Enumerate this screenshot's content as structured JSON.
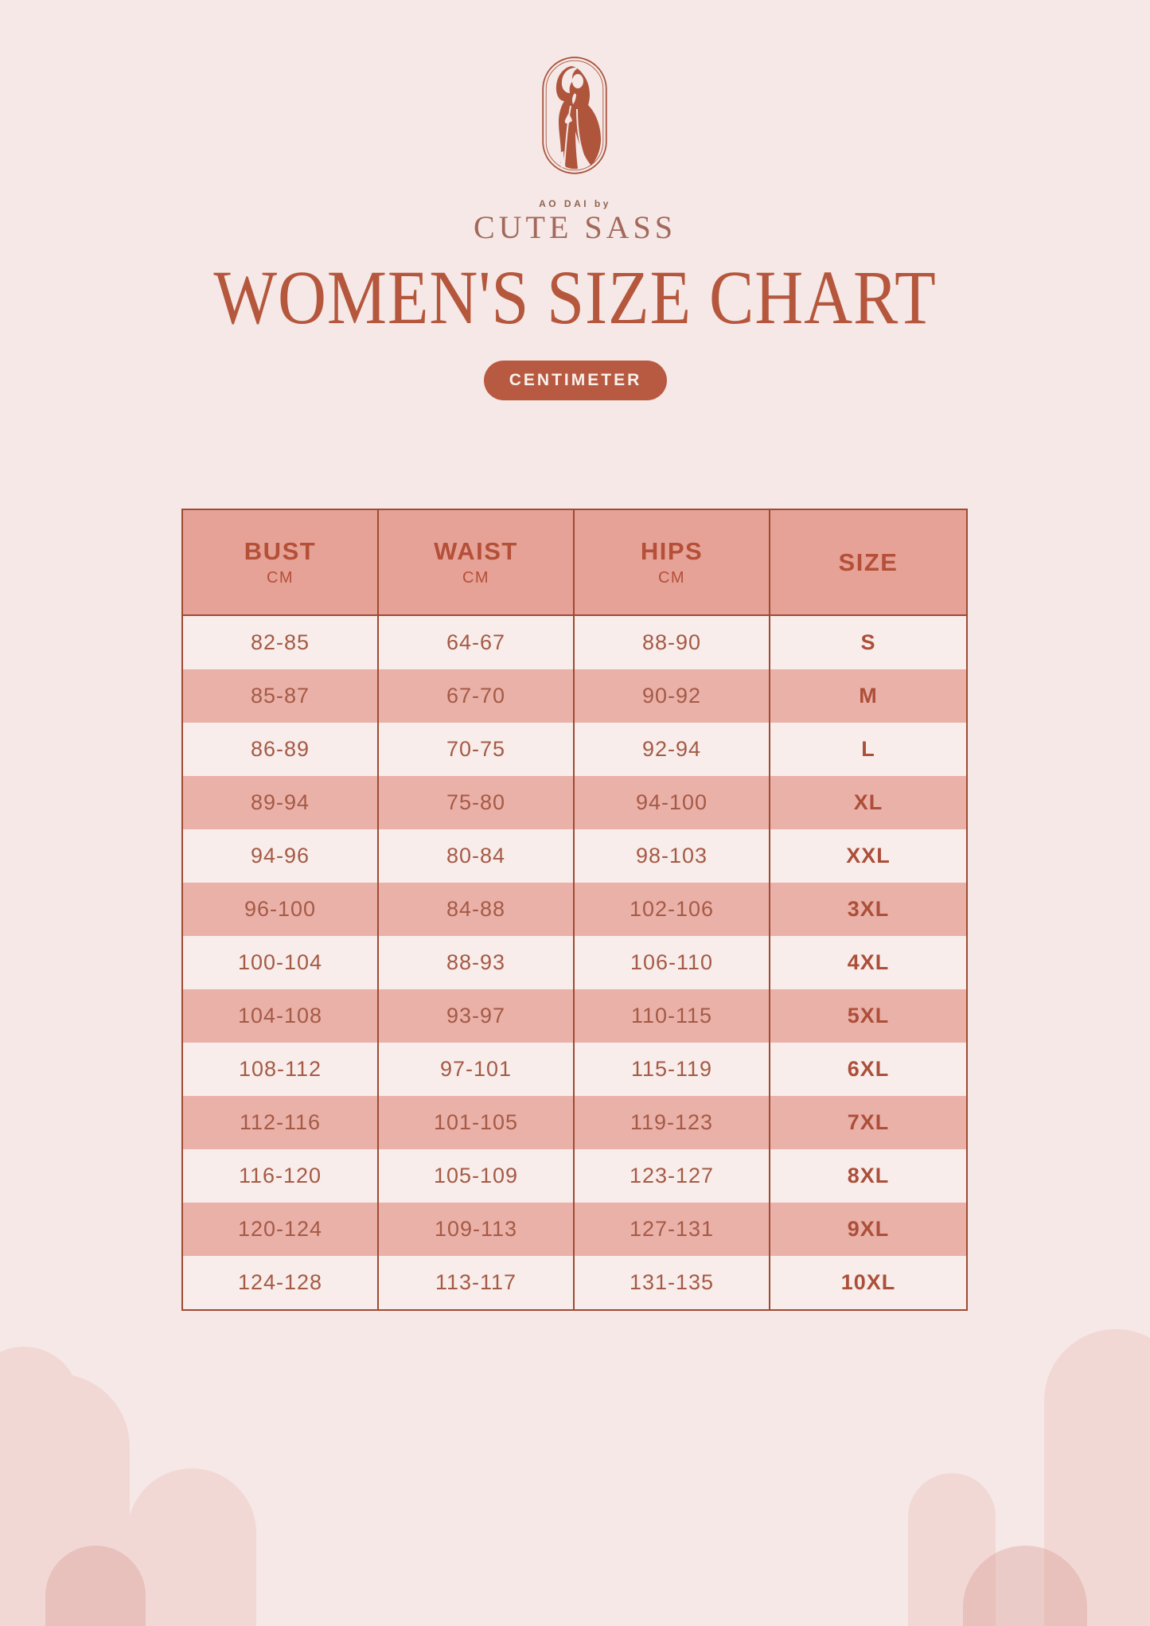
{
  "brand": {
    "figure_icon": "woman-ao-dai-icon",
    "logo_caption": "AO DAI by",
    "logo_name": "CUTE SASS"
  },
  "title": "WOMEN'S SIZE CHART",
  "unit_badge": "CENTIMETER",
  "table": {
    "columns": [
      {
        "label": "BUST",
        "sub": "CM"
      },
      {
        "label": "WAIST",
        "sub": "CM"
      },
      {
        "label": "HIPS",
        "sub": "CM"
      },
      {
        "label": "SIZE",
        "sub": ""
      }
    ],
    "rows": [
      [
        "82-85",
        "64-67",
        "88-90",
        "S"
      ],
      [
        "85-87",
        "67-70",
        "90-92",
        "M"
      ],
      [
        "86-89",
        "70-75",
        "92-94",
        "L"
      ],
      [
        "89-94",
        "75-80",
        "94-100",
        "XL"
      ],
      [
        "94-96",
        "80-84",
        "98-103",
        "XXL"
      ],
      [
        "96-100",
        "84-88",
        "102-106",
        "3XL"
      ],
      [
        "100-104",
        "88-93",
        "106-110",
        "4XL"
      ],
      [
        "104-108",
        "93-97",
        "110-115",
        "5XL"
      ],
      [
        "108-112",
        "97-101",
        "115-119",
        "6XL"
      ],
      [
        "112-116",
        "101-105",
        "119-123",
        "7XL"
      ],
      [
        "116-120",
        "105-109",
        "123-127",
        "8XL"
      ],
      [
        "120-124",
        "109-113",
        "127-131",
        "9XL"
      ],
      [
        "124-128",
        "113-117",
        "131-135",
        "10XL"
      ]
    ]
  },
  "chart_data": {
    "type": "table",
    "title": "WOMEN'S SIZE CHART",
    "unit": "CENTIMETER",
    "categories": [
      "BUST CM",
      "WAIST CM",
      "HIPS CM",
      "SIZE"
    ],
    "series": [
      {
        "name": "S",
        "values": [
          "82-85",
          "64-67",
          "88-90"
        ]
      },
      {
        "name": "M",
        "values": [
          "85-87",
          "67-70",
          "90-92"
        ]
      },
      {
        "name": "L",
        "values": [
          "86-89",
          "70-75",
          "92-94"
        ]
      },
      {
        "name": "XL",
        "values": [
          "89-94",
          "75-80",
          "94-100"
        ]
      },
      {
        "name": "XXL",
        "values": [
          "94-96",
          "80-84",
          "98-103"
        ]
      },
      {
        "name": "3XL",
        "values": [
          "96-100",
          "84-88",
          "102-106"
        ]
      },
      {
        "name": "4XL",
        "values": [
          "100-104",
          "88-93",
          "106-110"
        ]
      },
      {
        "name": "5XL",
        "values": [
          "104-108",
          "93-97",
          "110-115"
        ]
      },
      {
        "name": "6XL",
        "values": [
          "108-112",
          "97-101",
          "115-119"
        ]
      },
      {
        "name": "7XL",
        "values": [
          "112-116",
          "101-105",
          "119-123"
        ]
      },
      {
        "name": "8XL",
        "values": [
          "116-120",
          "105-109",
          "123-127"
        ]
      },
      {
        "name": "9XL",
        "values": [
          "120-124",
          "109-113",
          "127-131"
        ]
      },
      {
        "name": "10XL",
        "values": [
          "124-128",
          "113-117",
          "131-135"
        ]
      }
    ]
  },
  "colors": {
    "background": "#f5e8e7",
    "accent_terracotta": "#b5573c",
    "table_border": "#9e4b33",
    "header_fill": "#e6a296",
    "row_dark": "#eab1a9",
    "row_light": "#f8edeb",
    "badge_fill": "#b85a41",
    "badge_text": "#f9f1ed",
    "decor_arch": "#f1d8d5"
  }
}
